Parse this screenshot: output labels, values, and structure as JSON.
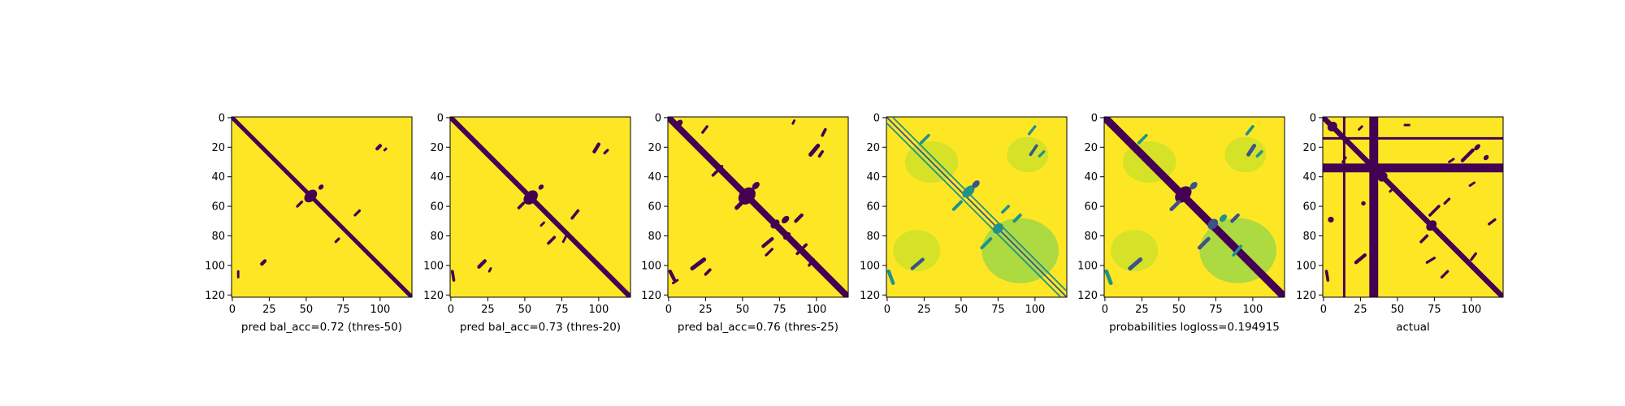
{
  "colors": {
    "background_value": "#fde725",
    "feature_value": "#440154",
    "colormap": "viridis",
    "frame": "#000000"
  },
  "chart_data": [
    {
      "type": "heatmap",
      "xlabel": "pred bal_acc=0.72 (thres-50)",
      "ylabel": "",
      "matrix_size": 122,
      "xlim": [
        0,
        121
      ],
      "ylim": [
        121,
        0
      ],
      "xticks": [
        0,
        25,
        50,
        75,
        100
      ],
      "yticks": [
        0,
        20,
        40,
        60,
        80,
        100,
        120
      ],
      "diagonal_band_halfwidth": 1.4,
      "blobs": [
        {
          "x": 53,
          "y": 53,
          "rx": 5,
          "ry": 3.5
        },
        {
          "x": 60,
          "y": 47,
          "rx": 2,
          "ry": 1.5
        }
      ],
      "segments": [
        {
          "x1": 98,
          "y1": 21,
          "x2": 100,
          "y2": 19,
          "w": 1.2
        },
        {
          "x1": 103,
          "y1": 22,
          "x2": 104,
          "y2": 21,
          "w": 0.8
        },
        {
          "x1": 20,
          "y1": 99,
          "x2": 22,
          "y2": 97,
          "w": 1.2
        },
        {
          "x1": 4,
          "y1": 104,
          "x2": 4,
          "y2": 108,
          "w": 0.8
        },
        {
          "x1": 83,
          "y1": 66,
          "x2": 86,
          "y2": 63,
          "w": 0.9
        },
        {
          "x1": 70,
          "y1": 84,
          "x2": 72,
          "y2": 82,
          "w": 0.9
        },
        {
          "x1": 44,
          "y1": 60,
          "x2": 47,
          "y2": 57,
          "w": 0.9
        }
      ]
    },
    {
      "type": "heatmap",
      "xlabel": "pred bal_acc=0.73 (thres-20)",
      "ylabel": "",
      "matrix_size": 122,
      "xlim": [
        0,
        121
      ],
      "ylim": [
        121,
        0
      ],
      "xticks": [
        0,
        25,
        50,
        75,
        100
      ],
      "yticks": [
        0,
        20,
        40,
        60,
        80,
        100,
        120
      ],
      "diagonal_band_halfwidth": 1.7,
      "blobs": [
        {
          "x": 54,
          "y": 54,
          "rx": 5.5,
          "ry": 4
        },
        {
          "x": 61,
          "y": 47,
          "rx": 2,
          "ry": 1.5
        }
      ],
      "segments": [
        {
          "x1": 97,
          "y1": 23,
          "x2": 100,
          "y2": 18,
          "w": 1.2
        },
        {
          "x1": 104,
          "y1": 24,
          "x2": 106,
          "y2": 22,
          "w": 0.9
        },
        {
          "x1": 19,
          "y1": 101,
          "x2": 23,
          "y2": 97,
          "w": 1.2
        },
        {
          "x1": 26,
          "y1": 104,
          "x2": 27,
          "y2": 102,
          "w": 0.8
        },
        {
          "x1": 1,
          "y1": 104,
          "x2": 2,
          "y2": 110,
          "w": 1.0
        },
        {
          "x1": 46,
          "y1": 61,
          "x2": 49,
          "y2": 58,
          "w": 1.0
        },
        {
          "x1": 82,
          "y1": 68,
          "x2": 86,
          "y2": 63,
          "w": 1.0
        },
        {
          "x1": 66,
          "y1": 85,
          "x2": 70,
          "y2": 81,
          "w": 1.0
        },
        {
          "x1": 61,
          "y1": 73,
          "x2": 63,
          "y2": 71,
          "w": 0.8
        },
        {
          "x1": 76,
          "y1": 84,
          "x2": 78,
          "y2": 80,
          "w": 0.8
        }
      ]
    },
    {
      "type": "heatmap",
      "xlabel": "pred bal_acc=0.76 (thres-25)",
      "ylabel": "",
      "matrix_size": 122,
      "xlim": [
        0,
        121
      ],
      "ylim": [
        121,
        0
      ],
      "xticks": [
        0,
        25,
        50,
        75,
        100
      ],
      "yticks": [
        0,
        20,
        40,
        60,
        80,
        100,
        120
      ],
      "diagonal_band_halfwidth": 2.2,
      "blobs": [
        {
          "x": 53,
          "y": 53,
          "rx": 6.5,
          "ry": 5
        },
        {
          "x": 59,
          "y": 46,
          "rx": 3,
          "ry": 2
        },
        {
          "x": 72,
          "y": 72,
          "rx": 3.5,
          "ry": 2.5
        },
        {
          "x": 79,
          "y": 69,
          "rx": 3,
          "ry": 2
        },
        {
          "x": 7,
          "y": 4,
          "rx": 3,
          "ry": 2
        },
        {
          "x": 80,
          "y": 80,
          "rx": 3,
          "ry": 2
        }
      ],
      "segments": [
        {
          "x1": 96,
          "y1": 25,
          "x2": 101,
          "y2": 19,
          "w": 1.4
        },
        {
          "x1": 102,
          "y1": 26,
          "x2": 104,
          "y2": 23,
          "w": 1.0
        },
        {
          "x1": 104,
          "y1": 12,
          "x2": 106,
          "y2": 8,
          "w": 1.0
        },
        {
          "x1": 84,
          "y1": 4,
          "x2": 85,
          "y2": 2,
          "w": 0.8
        },
        {
          "x1": 16,
          "y1": 102,
          "x2": 24,
          "y2": 96,
          "w": 1.4
        },
        {
          "x1": 25,
          "y1": 106,
          "x2": 28,
          "y2": 103,
          "w": 1.0
        },
        {
          "x1": 1,
          "y1": 104,
          "x2": 4,
          "y2": 110,
          "w": 1.2
        },
        {
          "x1": 30,
          "y1": 39,
          "x2": 36,
          "y2": 33,
          "w": 1.0
        },
        {
          "x1": 23,
          "y1": 10,
          "x2": 26,
          "y2": 6,
          "w": 0.9
        },
        {
          "x1": 46,
          "y1": 61,
          "x2": 50,
          "y2": 57,
          "w": 1.4
        },
        {
          "x1": 86,
          "y1": 70,
          "x2": 90,
          "y2": 66,
          "w": 1.2
        },
        {
          "x1": 64,
          "y1": 87,
          "x2": 70,
          "y2": 82,
          "w": 1.2
        },
        {
          "x1": 87,
          "y1": 92,
          "x2": 93,
          "y2": 86,
          "w": 1.0
        },
        {
          "x1": 95,
          "y1": 100,
          "x2": 98,
          "y2": 96,
          "w": 0.9
        },
        {
          "x1": 66,
          "y1": 93,
          "x2": 70,
          "y2": 89,
          "w": 0.9
        },
        {
          "x1": 84,
          "y1": 86,
          "x2": 86,
          "y2": 84,
          "w": 0.8
        },
        {
          "x1": 3,
          "y1": 112,
          "x2": 6,
          "y2": 110,
          "w": 0.8
        }
      ]
    },
    {
      "type": "heatmap",
      "xlabel": "",
      "ylabel": "",
      "matrix_size": 122,
      "xlim": [
        0,
        121
      ],
      "ylim": [
        121,
        0
      ],
      "xticks": [
        0,
        25,
        50,
        75,
        100
      ],
      "yticks": [
        0,
        20,
        40,
        60,
        80,
        100,
        120
      ],
      "diagonal_lines": [
        {
          "offset": 0,
          "w": 0.5,
          "color": "#3b528b"
        },
        {
          "offset": 4,
          "w": 0.5,
          "color": "#21918c"
        },
        {
          "offset": -4,
          "w": 0.5,
          "color": "#21918c"
        }
      ],
      "noise_regions": [
        {
          "x": 90,
          "y": 90,
          "rx": 26,
          "ry": 22,
          "color": "#6ccd5a"
        },
        {
          "x": 30,
          "y": 30,
          "rx": 18,
          "ry": 14,
          "color": "#b5de2b"
        },
        {
          "x": 20,
          "y": 90,
          "rx": 16,
          "ry": 14,
          "color": "#b5de2b"
        },
        {
          "x": 95,
          "y": 25,
          "rx": 14,
          "ry": 12,
          "color": "#b5de2b"
        }
      ],
      "blobs": [
        {
          "x": 55,
          "y": 50,
          "rx": 5,
          "ry": 3,
          "color": "#21918c"
        },
        {
          "x": 60,
          "y": 45,
          "rx": 3,
          "ry": 2,
          "color": "#3b528b"
        },
        {
          "x": 75,
          "y": 75,
          "rx": 4,
          "ry": 3,
          "color": "#21918c"
        }
      ],
      "segments": [
        {
          "x1": 97,
          "y1": 25,
          "x2": 101,
          "y2": 19,
          "w": 1.0,
          "color": "#3b528b"
        },
        {
          "x1": 103,
          "y1": 26,
          "x2": 106,
          "y2": 23,
          "w": 0.9,
          "color": "#21918c"
        },
        {
          "x1": 17,
          "y1": 102,
          "x2": 24,
          "y2": 96,
          "w": 1.2,
          "color": "#3b528b"
        },
        {
          "x1": 1,
          "y1": 104,
          "x2": 4,
          "y2": 112,
          "w": 1.2,
          "color": "#21918c"
        },
        {
          "x1": 64,
          "y1": 88,
          "x2": 70,
          "y2": 82,
          "w": 1.1,
          "color": "#21918c"
        },
        {
          "x1": 86,
          "y1": 70,
          "x2": 90,
          "y2": 66,
          "w": 1.1,
          "color": "#21918c"
        },
        {
          "x1": 23,
          "y1": 17,
          "x2": 28,
          "y2": 12,
          "w": 1.0,
          "color": "#21918c"
        },
        {
          "x1": 96,
          "y1": 11,
          "x2": 100,
          "y2": 6,
          "w": 0.9,
          "color": "#21918c"
        },
        {
          "x1": 45,
          "y1": 62,
          "x2": 50,
          "y2": 57,
          "w": 1.1,
          "color": "#21918c"
        },
        {
          "x1": 78,
          "y1": 64,
          "x2": 82,
          "y2": 60,
          "w": 1.0,
          "color": "#21918c"
        }
      ]
    },
    {
      "type": "heatmap",
      "xlabel": "probabilities logloss=0.194915",
      "ylabel": "",
      "matrix_size": 122,
      "xlim": [
        0,
        121
      ],
      "ylim": [
        121,
        0
      ],
      "xticks": [
        0,
        25,
        50,
        75,
        100
      ],
      "yticks": [
        0,
        20,
        40,
        60,
        80,
        100,
        120
      ],
      "diagonal_band_halfwidth": 2.6,
      "noise_regions": [
        {
          "x": 90,
          "y": 90,
          "rx": 26,
          "ry": 22,
          "color": "#6ccd5a"
        },
        {
          "x": 30,
          "y": 30,
          "rx": 18,
          "ry": 14,
          "color": "#b5de2b"
        },
        {
          "x": 20,
          "y": 90,
          "rx": 16,
          "ry": 14,
          "color": "#b5de2b"
        },
        {
          "x": 95,
          "y": 25,
          "rx": 14,
          "ry": 12,
          "color": "#b5de2b"
        }
      ],
      "blobs": [
        {
          "x": 53,
          "y": 52,
          "rx": 6.5,
          "ry": 4.5,
          "color": "#440154"
        },
        {
          "x": 60,
          "y": 46,
          "rx": 3,
          "ry": 2,
          "color": "#3b528b"
        },
        {
          "x": 73,
          "y": 72,
          "rx": 4,
          "ry": 3,
          "color": "#3b528b"
        },
        {
          "x": 80,
          "y": 68,
          "rx": 3,
          "ry": 2,
          "color": "#21918c"
        }
      ],
      "segments": [
        {
          "x1": 97,
          "y1": 25,
          "x2": 101,
          "y2": 19,
          "w": 1.3,
          "color": "#3b528b"
        },
        {
          "x1": 103,
          "y1": 26,
          "x2": 106,
          "y2": 23,
          "w": 1.0,
          "color": "#21918c"
        },
        {
          "x1": 17,
          "y1": 102,
          "x2": 24,
          "y2": 96,
          "w": 1.4,
          "color": "#3b528b"
        },
        {
          "x1": 1,
          "y1": 104,
          "x2": 4,
          "y2": 112,
          "w": 1.3,
          "color": "#21918c"
        },
        {
          "x1": 64,
          "y1": 88,
          "x2": 70,
          "y2": 82,
          "w": 1.3,
          "color": "#3b528b"
        },
        {
          "x1": 86,
          "y1": 70,
          "x2": 90,
          "y2": 66,
          "w": 1.2,
          "color": "#3b528b"
        },
        {
          "x1": 23,
          "y1": 17,
          "x2": 28,
          "y2": 12,
          "w": 1.0,
          "color": "#21918c"
        },
        {
          "x1": 96,
          "y1": 11,
          "x2": 100,
          "y2": 6,
          "w": 1.0,
          "color": "#21918c"
        },
        {
          "x1": 45,
          "y1": 62,
          "x2": 50,
          "y2": 57,
          "w": 1.3,
          "color": "#3b528b"
        },
        {
          "x1": 87,
          "y1": 93,
          "x2": 92,
          "y2": 87,
          "w": 1.0,
          "color": "#21918c"
        }
      ]
    },
    {
      "type": "heatmap",
      "xlabel": "actual",
      "ylabel": "",
      "matrix_size": 122,
      "xlim": [
        0,
        121
      ],
      "ylim": [
        121,
        0
      ],
      "xticks": [
        0,
        25,
        50,
        75,
        100
      ],
      "yticks": [
        0,
        20,
        40,
        60,
        80,
        100,
        120
      ],
      "diagonal_band_halfwidth": 1.8,
      "row_lines": [
        {
          "index": 14,
          "w": 0.8
        },
        {
          "index": 34,
          "w": 3.0
        }
      ],
      "col_lines": [
        {
          "index": 14,
          "w": 0.8
        },
        {
          "index": 34,
          "w": 3.0
        }
      ],
      "blobs": [
        {
          "x": 6,
          "y": 6,
          "rx": 3.5,
          "ry": 3
        },
        {
          "x": 40,
          "y": 40,
          "rx": 3.5,
          "ry": 3
        },
        {
          "x": 73,
          "y": 73,
          "rx": 4,
          "ry": 3
        },
        {
          "x": 104,
          "y": 20,
          "rx": 2.5,
          "ry": 1.5
        },
        {
          "x": 110,
          "y": 27,
          "rx": 2,
          "ry": 1.5
        },
        {
          "x": 27,
          "y": 58,
          "rx": 1.5,
          "ry": 1.5
        },
        {
          "x": 5,
          "y": 69,
          "rx": 2,
          "ry": 2
        }
      ],
      "segments": [
        {
          "x1": 94,
          "y1": 29,
          "x2": 101,
          "y2": 22,
          "w": 1.2
        },
        {
          "x1": 2,
          "y1": 104,
          "x2": 3,
          "y2": 110,
          "w": 1.0
        },
        {
          "x1": 22,
          "y1": 98,
          "x2": 28,
          "y2": 93,
          "w": 1.2
        },
        {
          "x1": 66,
          "y1": 84,
          "x2": 70,
          "y2": 80,
          "w": 1.0
        },
        {
          "x1": 72,
          "y1": 66,
          "x2": 78,
          "y2": 60,
          "w": 1.0
        },
        {
          "x1": 82,
          "y1": 58,
          "x2": 85,
          "y2": 55,
          "w": 0.9
        },
        {
          "x1": 70,
          "y1": 98,
          "x2": 75,
          "y2": 95,
          "w": 0.9
        },
        {
          "x1": 100,
          "y1": 96,
          "x2": 103,
          "y2": 92,
          "w": 0.9
        },
        {
          "x1": 80,
          "y1": 108,
          "x2": 84,
          "y2": 104,
          "w": 0.9
        },
        {
          "x1": 85,
          "y1": 30,
          "x2": 88,
          "y2": 28,
          "w": 0.8
        },
        {
          "x1": 55,
          "y1": 5,
          "x2": 58,
          "y2": 5,
          "w": 0.8
        },
        {
          "x1": 99,
          "y1": 46,
          "x2": 102,
          "y2": 44,
          "w": 0.8
        },
        {
          "x1": 112,
          "y1": 72,
          "x2": 116,
          "y2": 69,
          "w": 0.9
        },
        {
          "x1": 24,
          "y1": 8,
          "x2": 26,
          "y2": 6,
          "w": 0.8
        },
        {
          "x1": 13,
          "y1": 30,
          "x2": 15,
          "y2": 27,
          "w": 0.8
        },
        {
          "x1": 45,
          "y1": 50,
          "x2": 47,
          "y2": 48,
          "w": 0.8
        }
      ]
    }
  ]
}
